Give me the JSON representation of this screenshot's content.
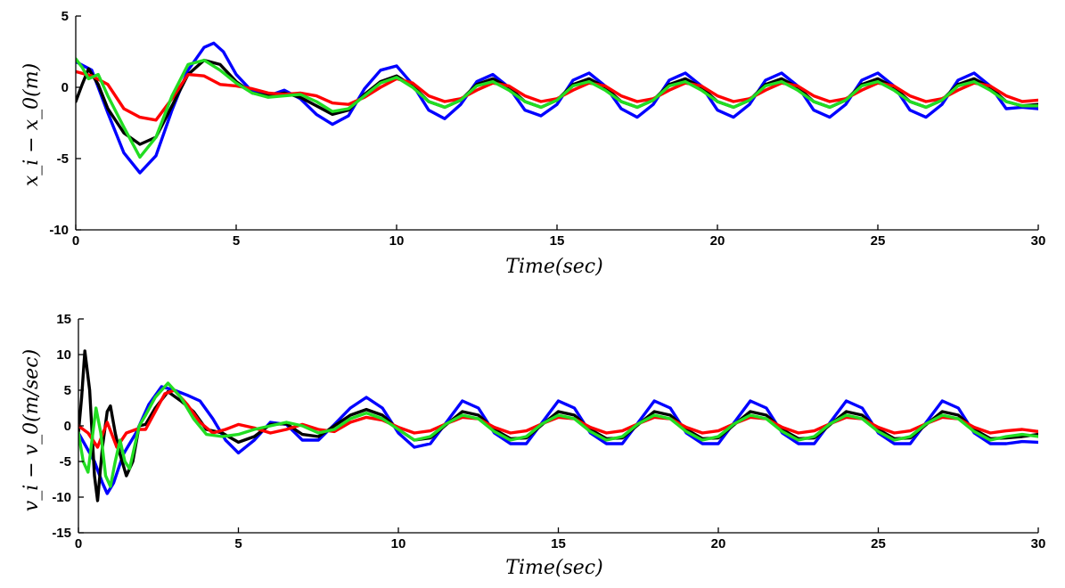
{
  "chart_data": [
    {
      "type": "line",
      "xlabel": "Time(sec)",
      "ylabel": "x_i − x_0(m)",
      "xlim": [
        0,
        30
      ],
      "ylim": [
        -10,
        5
      ],
      "xticks": [
        0,
        5,
        10,
        15,
        20,
        25,
        30
      ],
      "yticks": [
        -10,
        -5,
        0,
        5
      ],
      "grid": false,
      "series": [
        {
          "color": "#0000ff",
          "x": [
            0,
            0.5,
            1,
            1.5,
            2,
            2.5,
            3,
            3.5,
            4,
            4.3,
            4.6,
            5,
            5.5,
            6,
            6.5,
            7,
            7.5,
            8,
            8.5,
            9,
            9.5,
            10,
            10.5,
            11,
            11.5,
            12,
            12.5,
            13,
            13.5,
            14,
            14.5,
            15,
            15.5,
            16,
            16.5,
            17,
            17.5,
            18,
            18.5,
            19,
            19.5,
            20,
            20.5,
            21,
            21.5,
            22,
            22.5,
            23,
            23.5,
            24,
            24.5,
            25,
            25.5,
            26,
            26.5,
            27,
            27.5,
            28,
            28.5,
            29,
            29.5,
            30
          ],
          "y": [
            1.8,
            1.2,
            -1.8,
            -4.6,
            -6,
            -4.8,
            -1.6,
            1.2,
            2.8,
            3.1,
            2.5,
            0.9,
            -0.3,
            -0.6,
            -0.2,
            -0.8,
            -1.9,
            -2.6,
            -2,
            -0.1,
            1.2,
            1.5,
            0.2,
            -1.6,
            -2.2,
            -1.2,
            0.4,
            0.9,
            0,
            -1.6,
            -2,
            -1.2,
            0.5,
            1,
            0.1,
            -1.5,
            -2.1,
            -1.2,
            0.5,
            1,
            0.1,
            -1.6,
            -2.1,
            -1.2,
            0.5,
            1,
            0.1,
            -1.6,
            -2.1,
            -1.2,
            0.5,
            1,
            0.1,
            -1.6,
            -2.1,
            -1.2,
            0.5,
            1,
            0.1,
            -1.5,
            -1.4,
            -1.5
          ]
        },
        {
          "color": "#000000",
          "x": [
            0,
            0.2,
            0.4,
            0.7,
            1,
            1.5,
            2,
            2.5,
            3,
            3.5,
            4,
            4.5,
            5,
            5.5,
            6,
            6.5,
            7,
            7.5,
            8,
            8.5,
            9,
            9.5,
            10,
            10.5,
            11,
            11.5,
            12,
            12.5,
            13,
            13.5,
            14,
            14.5,
            15,
            15.5,
            16,
            16.5,
            17,
            17.5,
            18,
            18.5,
            19,
            19.5,
            20,
            20.5,
            21,
            21.5,
            22,
            22.5,
            23,
            23.5,
            24,
            24.5,
            25,
            25.5,
            26,
            26.5,
            27,
            27.5,
            28,
            28.5,
            29,
            29.5,
            30
          ],
          "y": [
            -1,
            0.2,
            1.3,
            0.2,
            -1.5,
            -3.2,
            -4,
            -3.5,
            -1.3,
            0.9,
            1.9,
            1.6,
            0.4,
            -0.4,
            -0.6,
            -0.4,
            -0.7,
            -1.3,
            -1.9,
            -1.6,
            -0.5,
            0.4,
            0.8,
            0.1,
            -1,
            -1.4,
            -0.9,
            0.2,
            0.6,
            0,
            -1,
            -1.4,
            -0.9,
            0.2,
            0.6,
            0,
            -1,
            -1.4,
            -0.9,
            0.2,
            0.6,
            0,
            -1,
            -1.4,
            -0.9,
            0.2,
            0.6,
            0,
            -1,
            -1.4,
            -0.9,
            0.2,
            0.6,
            0,
            -1,
            -1.4,
            -0.9,
            0.2,
            0.6,
            0,
            -1,
            -1.3,
            -1.2
          ]
        },
        {
          "color": "#ff0000",
          "x": [
            0,
            0.5,
            1,
            1.5,
            2,
            2.5,
            3,
            3.5,
            4,
            4.5,
            5,
            5.5,
            6,
            6.5,
            7,
            7.5,
            8,
            8.5,
            9,
            9.5,
            10,
            10.5,
            11,
            11.5,
            12,
            12.5,
            13,
            13.5,
            14,
            14.5,
            15,
            15.5,
            16,
            16.5,
            17,
            17.5,
            18,
            18.5,
            19,
            19.5,
            20,
            20.5,
            21,
            21.5,
            22,
            22.5,
            23,
            23.5,
            24,
            24.5,
            25,
            25.5,
            26,
            26.5,
            27,
            27.5,
            28,
            28.5,
            29,
            29.5,
            30
          ],
          "y": [
            1.1,
            0.8,
            0.2,
            -1.5,
            -2.1,
            -2.3,
            -0.8,
            0.9,
            0.8,
            0.2,
            0.1,
            -0.1,
            -0.4,
            -0.5,
            -0.4,
            -0.6,
            -1.1,
            -1.2,
            -0.7,
            0,
            0.6,
            0.3,
            -0.6,
            -1,
            -0.8,
            -0.2,
            0.3,
            0.1,
            -0.6,
            -1,
            -0.8,
            -0.2,
            0.3,
            0.1,
            -0.6,
            -1,
            -0.8,
            -0.2,
            0.3,
            0.1,
            -0.6,
            -1,
            -0.8,
            -0.2,
            0.3,
            0.1,
            -0.6,
            -1,
            -0.8,
            -0.2,
            0.3,
            0.1,
            -0.6,
            -1,
            -0.8,
            -0.2,
            0.3,
            0.1,
            -0.6,
            -1,
            -0.9
          ]
        },
        {
          "color": "#22dd22",
          "x": [
            0,
            0.2,
            0.4,
            0.7,
            1,
            1.5,
            2,
            2.5,
            3,
            3.5,
            4,
            4.5,
            5,
            5.5,
            6,
            6.5,
            7,
            7.5,
            8,
            8.5,
            9,
            9.5,
            10,
            10.5,
            11,
            11.5,
            12,
            12.5,
            13,
            13.5,
            14,
            14.5,
            15,
            15.5,
            16,
            16.5,
            17,
            17.5,
            18,
            18.5,
            19,
            19.5,
            20,
            20.5,
            21,
            21.5,
            22,
            22.5,
            23,
            23.5,
            24,
            24.5,
            25,
            25.5,
            26,
            26.5,
            27,
            27.5,
            28,
            28.5,
            29,
            29.5,
            30
          ],
          "y": [
            2,
            1.4,
            0.6,
            0.9,
            -0.6,
            -2.8,
            -4.9,
            -3.5,
            -0.6,
            1.6,
            1.9,
            1.2,
            0.3,
            -0.4,
            -0.7,
            -0.6,
            -0.5,
            -1,
            -1.7,
            -1.5,
            -0.6,
            0.3,
            0.7,
            0,
            -1,
            -1.4,
            -0.9,
            0.1,
            0.4,
            -0.2,
            -1,
            -1.4,
            -0.9,
            0.1,
            0.4,
            -0.2,
            -1,
            -1.4,
            -0.9,
            0.1,
            0.4,
            -0.2,
            -1,
            -1.4,
            -0.9,
            0.1,
            0.4,
            -0.2,
            -1,
            -1.4,
            -0.9,
            0.1,
            0.4,
            -0.2,
            -1,
            -1.4,
            -0.9,
            0.1,
            0.4,
            -0.2,
            -1,
            -1.3,
            -1.3
          ]
        }
      ]
    },
    {
      "type": "line",
      "xlabel": "Time(sec)",
      "ylabel": "v_i − v_0(m/sec)",
      "xlim": [
        0,
        30
      ],
      "ylim": [
        -15,
        15
      ],
      "xticks": [
        0,
        5,
        10,
        15,
        20,
        25,
        30
      ],
      "yticks": [
        -15,
        -10,
        -5,
        0,
        5,
        10,
        15
      ],
      "grid": false,
      "series": [
        {
          "color": "#0000ff",
          "x": [
            0,
            0.25,
            0.5,
            0.75,
            0.9,
            1.1,
            1.4,
            1.8,
            2.2,
            2.6,
            3,
            3.4,
            3.8,
            4.2,
            4.6,
            5,
            5.5,
            6,
            6.5,
            7,
            7.5,
            8,
            8.5,
            9,
            9.5,
            10,
            10.5,
            11,
            11.5,
            12,
            12.5,
            13,
            13.5,
            14,
            14.5,
            15,
            15.5,
            16,
            16.5,
            17,
            17.5,
            18,
            18.5,
            19,
            19.5,
            20,
            20.5,
            21,
            21.5,
            22,
            22.5,
            23,
            23.5,
            24,
            24.5,
            25,
            25.5,
            26,
            26.5,
            27,
            27.5,
            28,
            28.5,
            29,
            29.5,
            30
          ],
          "y": [
            -1,
            -3,
            -5,
            -8,
            -9.5,
            -8,
            -4,
            -1,
            3,
            5.5,
            5,
            4.3,
            3.5,
            1,
            -2,
            -3.8,
            -2,
            0.5,
            0.2,
            -2,
            -2,
            0.2,
            2.5,
            4,
            2.5,
            -1,
            -3,
            -2.5,
            0.5,
            3.5,
            2.5,
            -1,
            -2.5,
            -2.5,
            0.5,
            3.5,
            2.5,
            -1,
            -2.5,
            -2.5,
            0.5,
            3.5,
            2.5,
            -1,
            -2.5,
            -2.5,
            0.5,
            3.5,
            2.5,
            -1,
            -2.5,
            -2.5,
            0.5,
            3.5,
            2.5,
            -1,
            -2.5,
            -2.5,
            0.5,
            3.5,
            2.5,
            -1,
            -2.5,
            -2.5,
            -2.2,
            -2.3
          ]
        },
        {
          "color": "#000000",
          "x": [
            0,
            0.1,
            0.2,
            0.35,
            0.5,
            0.6,
            0.75,
            0.9,
            1,
            1.15,
            1.3,
            1.5,
            1.7,
            1.9,
            2.1,
            2.4,
            2.8,
            3.2,
            3.6,
            4,
            4.5,
            5,
            5.5,
            6,
            6.5,
            7,
            7.5,
            8,
            8.5,
            9,
            9.5,
            10,
            10.5,
            11,
            11.5,
            12,
            12.5,
            13,
            13.5,
            14,
            14.5,
            15,
            15.5,
            16,
            16.5,
            17,
            17.5,
            18,
            18.5,
            19,
            19.5,
            20,
            20.5,
            21,
            21.5,
            22,
            22.5,
            23,
            23.5,
            24,
            24.5,
            25,
            25.5,
            26,
            26.5,
            27,
            27.5,
            28,
            28.5,
            29,
            29.5,
            30
          ],
          "y": [
            -1,
            4,
            10.5,
            5,
            -7,
            -10.5,
            -3,
            2,
            2.8,
            -1,
            -4,
            -7,
            -5,
            0,
            0.2,
            2.5,
            4.8,
            3.5,
            2,
            -0.5,
            -1,
            -2.3,
            -1.5,
            0.2,
            0.3,
            -1.2,
            -1.5,
            0,
            1.5,
            2.3,
            1.5,
            -0.5,
            -2,
            -1.7,
            0.2,
            2,
            1.5,
            -0.5,
            -1.8,
            -1.7,
            0.2,
            2,
            1.5,
            -0.5,
            -1.8,
            -1.7,
            0.2,
            2,
            1.5,
            -0.5,
            -1.8,
            -1.7,
            0.2,
            2,
            1.5,
            -0.5,
            -1.8,
            -1.7,
            0.2,
            2,
            1.5,
            -0.5,
            -1.8,
            -1.7,
            0.2,
            2,
            1.5,
            -0.5,
            -1.8,
            -1.7,
            -1.5,
            -1.2
          ]
        },
        {
          "color": "#ff0000",
          "x": [
            0,
            0.3,
            0.6,
            0.9,
            1.2,
            1.5,
            1.8,
            2.1,
            2.4,
            2.7,
            3,
            3.4,
            3.8,
            4.2,
            4.6,
            5,
            5.5,
            6,
            6.5,
            7,
            7.5,
            8,
            8.5,
            9,
            9.5,
            10,
            10.5,
            11,
            11.5,
            12,
            12.5,
            13,
            13.5,
            14,
            14.5,
            15,
            15.5,
            16,
            16.5,
            17,
            17.5,
            18,
            18.5,
            19,
            19.5,
            20,
            20.5,
            21,
            21.5,
            22,
            22.5,
            23,
            23.5,
            24,
            24.5,
            25,
            25.5,
            26,
            26.5,
            27,
            27.5,
            28,
            28.5,
            29,
            29.5,
            30
          ],
          "y": [
            0,
            -1,
            -3,
            0.5,
            -3,
            -1,
            -0.5,
            -0.5,
            2,
            4.5,
            5,
            3,
            0.5,
            -1,
            -0.5,
            0.2,
            -0.3,
            -1,
            -0.5,
            0.2,
            -0.5,
            -0.8,
            0.5,
            1.2,
            0.8,
            -0.2,
            -1,
            -0.7,
            0.3,
            1.2,
            1,
            -0.2,
            -1,
            -0.7,
            0.3,
            1.2,
            1,
            -0.2,
            -1,
            -0.7,
            0.3,
            1.2,
            1,
            -0.2,
            -1,
            -0.7,
            0.3,
            1.2,
            1,
            -0.2,
            -1,
            -0.7,
            0.3,
            1.2,
            1,
            -0.2,
            -1,
            -0.7,
            0.3,
            1.2,
            1,
            -0.2,
            -1,
            -0.7,
            -0.5,
            -0.8
          ]
        },
        {
          "color": "#22dd22",
          "x": [
            0,
            0.15,
            0.3,
            0.45,
            0.55,
            0.7,
            0.85,
            1,
            1.15,
            1.3,
            1.45,
            1.6,
            1.75,
            1.9,
            2.1,
            2.4,
            2.8,
            3.2,
            3.6,
            4,
            4.5,
            5,
            5.5,
            6,
            6.5,
            7,
            7.5,
            8,
            8.5,
            9,
            9.5,
            10,
            10.5,
            11,
            11.5,
            12,
            12.5,
            13,
            13.5,
            14,
            14.5,
            15,
            15.5,
            16,
            16.5,
            17,
            17.5,
            18,
            18.5,
            19,
            19.5,
            20,
            20.5,
            21,
            21.5,
            22,
            22.5,
            23,
            23.5,
            24,
            24.5,
            25,
            25.5,
            26,
            26.5,
            27,
            27.5,
            28,
            28.5,
            29,
            29.5,
            30
          ],
          "y": [
            -1,
            -5,
            -6.5,
            -1,
            2.5,
            -1,
            -7,
            -8.5,
            -5,
            -2,
            -5,
            -6,
            -3,
            0,
            1.5,
            4,
            6,
            4,
            1,
            -1.2,
            -1.5,
            -1.2,
            -0.5,
            0,
            0.5,
            0,
            -1,
            -0.5,
            1,
            1.8,
            1,
            -0.5,
            -2,
            -1.5,
            0.3,
            1.5,
            1,
            -0.8,
            -2,
            -1.5,
            0.3,
            1.5,
            1,
            -0.8,
            -2,
            -1.5,
            0.3,
            1.5,
            1,
            -0.8,
            -2,
            -1.5,
            0.3,
            1.5,
            1,
            -0.8,
            -2,
            -1.5,
            0.3,
            1.5,
            1,
            -0.8,
            -2,
            -1.5,
            0.3,
            1.5,
            1,
            -0.8,
            -2,
            -1.5,
            -1.2,
            -1.5
          ]
        }
      ]
    }
  ]
}
